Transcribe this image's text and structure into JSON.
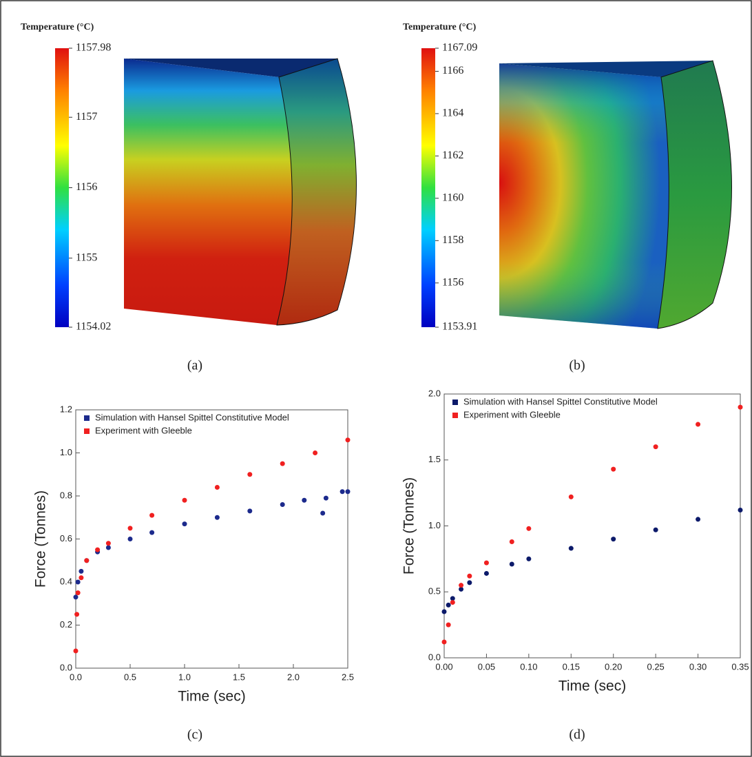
{
  "chart_data": [
    {
      "type": "contour",
      "colorbar_title": "Temperature (°C)",
      "clim": [
        1154.02,
        1157.98
      ],
      "cticks": [
        1154.02,
        1155,
        1156,
        1157,
        1157.98
      ],
      "panel_label": "(a)"
    },
    {
      "type": "contour",
      "colorbar_title": "Temperature (°C)",
      "clim": [
        1153.91,
        1167.09
      ],
      "cticks": [
        1153.91,
        1156,
        1158,
        1160,
        1162,
        1164,
        1166,
        1167.09
      ],
      "panel_label": "(b)"
    },
    {
      "type": "scatter",
      "xlabel": "Time (sec)",
      "ylabel": "Force (Tonnes)",
      "panel_label": "(c)",
      "xlim": [
        0,
        2.5
      ],
      "ylim": [
        0,
        1.2
      ],
      "xticks": [
        {
          "value": 0,
          "label": "0.0"
        },
        0.5,
        {
          "value": 1,
          "label": "1.0"
        },
        1.5,
        {
          "value": 2,
          "label": "2.0"
        },
        2.5
      ],
      "yticks": [
        {
          "value": 0,
          "label": "0.0"
        },
        0.2,
        0.4,
        0.6,
        0.8,
        {
          "value": 1,
          "label": "1.0"
        },
        1.2
      ],
      "series": [
        {
          "name": "Simulation with Hansel Spittel Constitutive Model",
          "color": "#1c2a8c",
          "x": [
            0,
            0.02,
            0.05,
            0.1,
            0.2,
            0.3,
            0.5,
            0.7,
            1.0,
            1.3,
            1.6,
            1.9,
            2.1,
            2.27,
            2.3,
            2.45,
            2.5
          ],
          "values": [
            0.33,
            0.4,
            0.45,
            0.5,
            0.54,
            0.56,
            0.6,
            0.63,
            0.67,
            0.7,
            0.73,
            0.76,
            0.78,
            0.72,
            0.79,
            0.82,
            0.82
          ]
        },
        {
          "name": "Experiment with Gleeble",
          "color": "#f02020",
          "x": [
            0,
            0.01,
            0.02,
            0.05,
            0.1,
            0.2,
            0.3,
            0.5,
            0.7,
            1.0,
            1.3,
            1.6,
            1.9,
            2.2,
            2.5
          ],
          "values": [
            0.08,
            0.25,
            0.35,
            0.42,
            0.5,
            0.55,
            0.58,
            0.65,
            0.71,
            0.78,
            0.84,
            0.9,
            0.95,
            1.0,
            1.06
          ]
        }
      ]
    },
    {
      "type": "scatter",
      "xlabel": "Time (sec)",
      "ylabel": "Force (Tonnes)",
      "panel_label": "(d)",
      "xlim": [
        0,
        0.35
      ],
      "ylim": [
        0,
        2
      ],
      "xticks": [
        {
          "value": 0,
          "label": "0.00"
        },
        0.05,
        {
          "value": 0.1,
          "label": "0.10"
        },
        0.15,
        {
          "value": 0.2,
          "label": "0.20"
        },
        0.25,
        {
          "value": 0.3,
          "label": "0.30"
        },
        0.35
      ],
      "yticks": [
        {
          "value": 0,
          "label": "0.0"
        },
        0.5,
        {
          "value": 1,
          "label": "1.0"
        },
        1.5,
        {
          "value": 2,
          "label": "2.0"
        }
      ],
      "series": [
        {
          "name": "Simulation with Hansel Spittel Constitutive Model",
          "color": "#0c1a6a",
          "x": [
            0,
            0.005,
            0.01,
            0.02,
            0.03,
            0.05,
            0.08,
            0.1,
            0.15,
            0.2,
            0.25,
            0.3,
            0.35
          ],
          "values": [
            0.35,
            0.4,
            0.45,
            0.52,
            0.57,
            0.64,
            0.71,
            0.75,
            0.83,
            0.9,
            0.97,
            1.05,
            1.12
          ]
        },
        {
          "name": "Experiment with Gleeble",
          "color": "#f02020",
          "x": [
            0,
            0.005,
            0.01,
            0.02,
            0.03,
            0.05,
            0.08,
            0.1,
            0.15,
            0.2,
            0.25,
            0.3,
            0.35
          ],
          "values": [
            0.12,
            0.25,
            0.42,
            0.55,
            0.62,
            0.72,
            0.88,
            0.98,
            1.22,
            1.43,
            1.6,
            1.77,
            1.9
          ]
        }
      ]
    }
  ]
}
